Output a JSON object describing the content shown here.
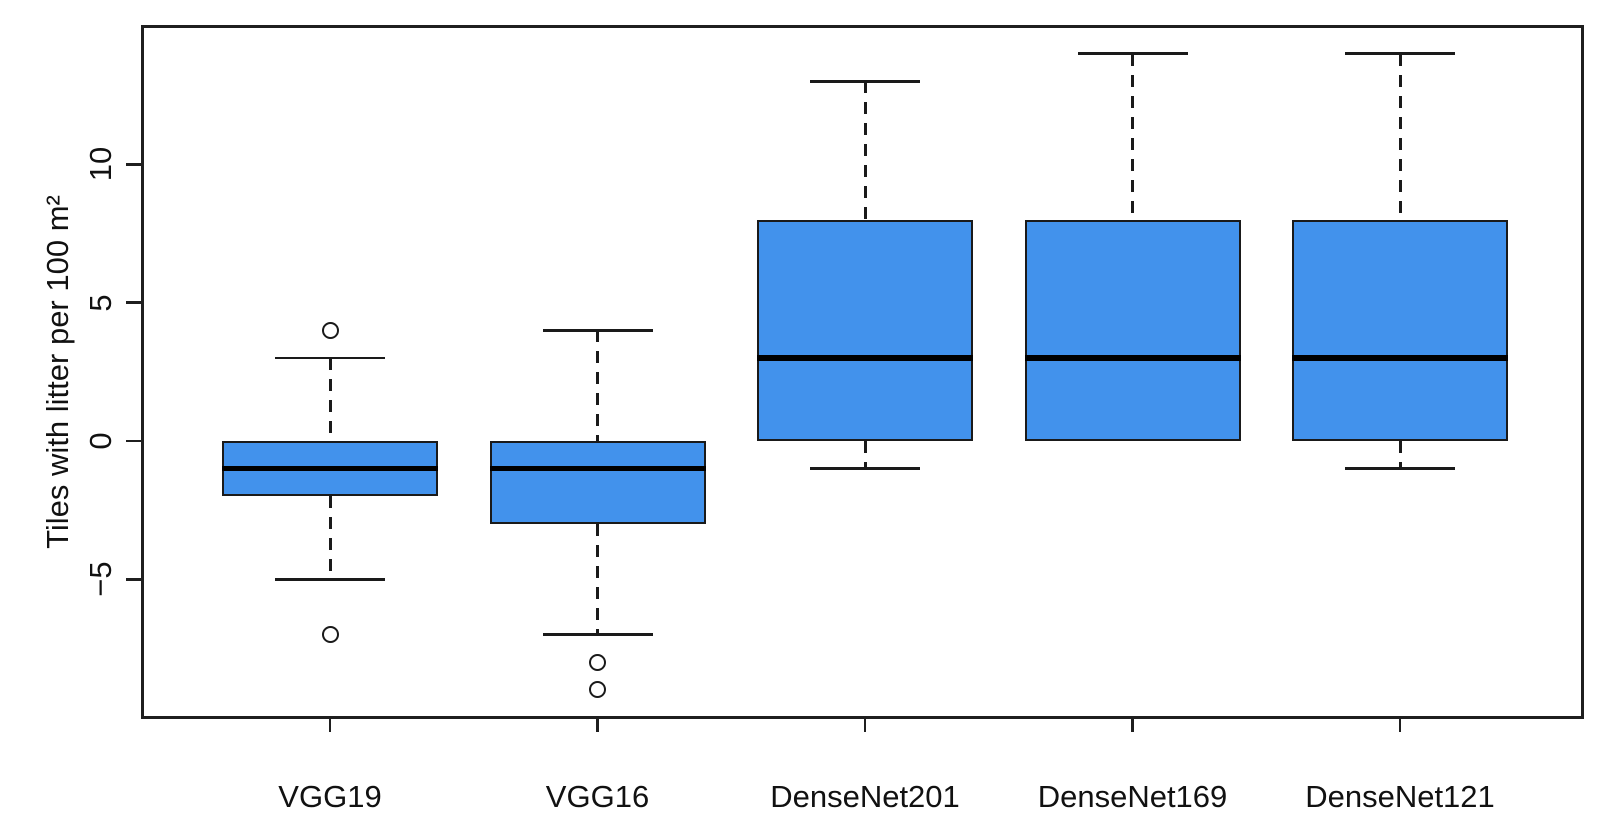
{
  "figure": {
    "background": "#ffffff"
  },
  "chart_data": {
    "type": "boxplot",
    "title": "",
    "xlabel": "",
    "ylabel": "Tiles with litter per 100 m²",
    "categories": [
      "VGG19",
      "VGG16",
      "DenseNet201",
      "DenseNet169",
      "DenseNet121"
    ],
    "ylim": [
      -10,
      15
    ],
    "yticks": [
      {
        "value": -5,
        "label": "−5"
      },
      {
        "value": 0,
        "label": "0"
      },
      {
        "value": 5,
        "label": "5"
      },
      {
        "value": 10,
        "label": "10"
      }
    ],
    "grid": false,
    "legend": false,
    "box_fill_color": "#4292EC",
    "line_color": "#1a1a1a",
    "median_color": "#000000",
    "series": [
      {
        "name": "VGG19",
        "whisker_low": -5,
        "q1": -2,
        "median": -1,
        "q3": 0,
        "whisker_high": 3,
        "outliers": [
          4,
          -7
        ]
      },
      {
        "name": "VGG16",
        "whisker_low": -7,
        "q1": -3,
        "median": -1,
        "q3": 0,
        "whisker_high": 4,
        "outliers": [
          -8,
          -9
        ]
      },
      {
        "name": "DenseNet201",
        "whisker_low": -1,
        "q1": 0,
        "median": 3,
        "q3": 8,
        "whisker_high": 13,
        "outliers": []
      },
      {
        "name": "DenseNet169",
        "whisker_low": 0,
        "q1": 0,
        "median": 3,
        "q3": 8,
        "whisker_high": 14,
        "outliers": []
      },
      {
        "name": "DenseNet121",
        "whisker_low": -1,
        "q1": 0,
        "median": 3,
        "q3": 8,
        "whisker_high": 14,
        "outliers": []
      }
    ]
  }
}
